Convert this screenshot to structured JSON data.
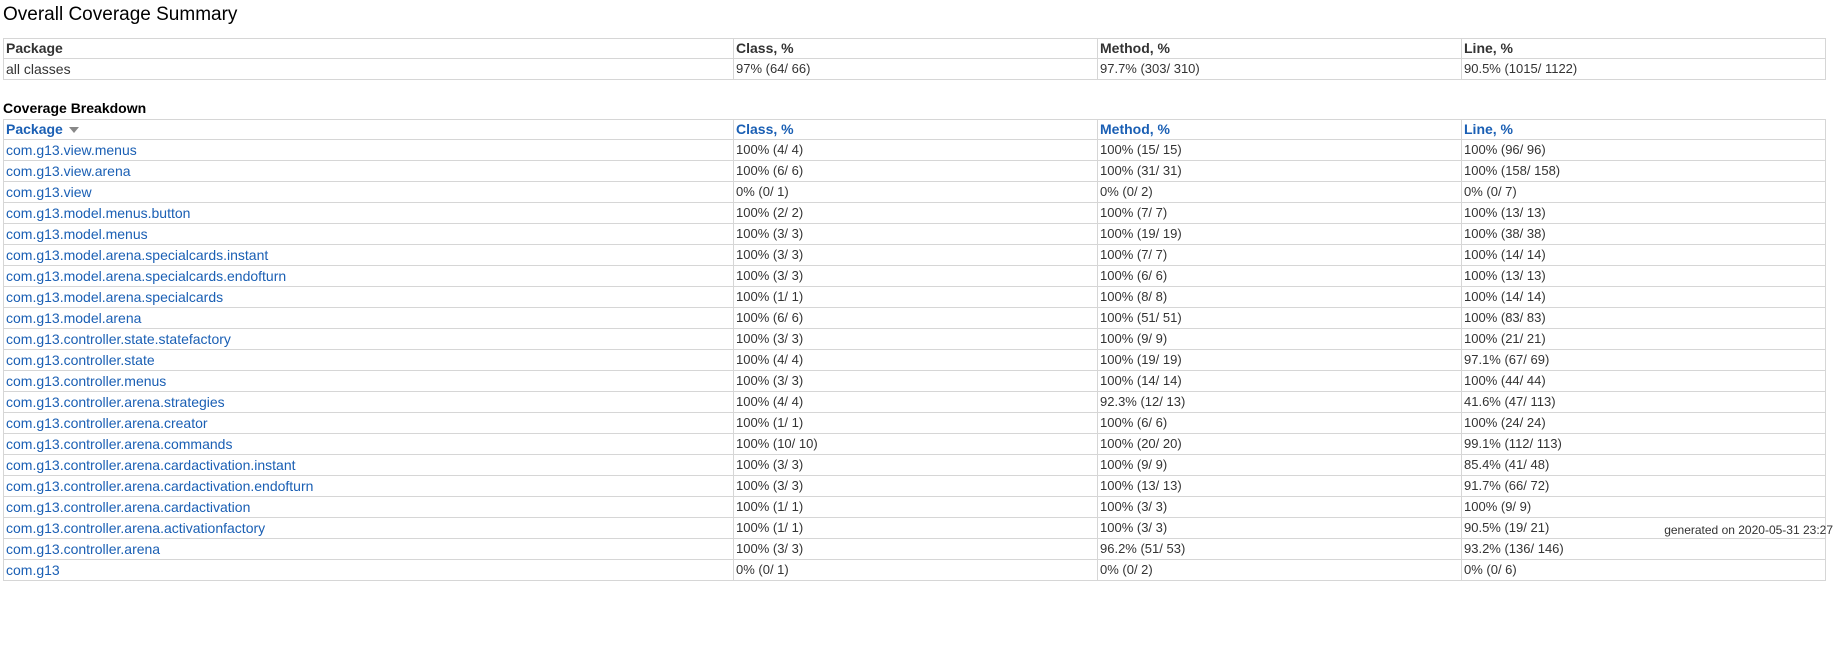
{
  "title": "Overall Coverage Summary",
  "summary": {
    "headers": [
      "Package",
      "Class, %",
      "Method, %",
      "Line, %"
    ],
    "row": {
      "package": "all classes",
      "class": "97% (64/ 66)",
      "method": "97.7% (303/ 310)",
      "line": "90.5% (1015/ 1122)"
    }
  },
  "breakdown": {
    "title": "Coverage Breakdown",
    "headers": [
      "Package",
      "Class, %",
      "Method, %",
      "Line, %"
    ],
    "sort_icon": "sort-descending-icon",
    "rows": [
      {
        "package": "com.g13.view.menus",
        "class": "100% (4/ 4)",
        "method": "100% (15/ 15)",
        "line": "100% (96/ 96)"
      },
      {
        "package": "com.g13.view.arena",
        "class": "100% (6/ 6)",
        "method": "100% (31/ 31)",
        "line": "100% (158/ 158)"
      },
      {
        "package": "com.g13.view",
        "class": "0% (0/ 1)",
        "method": "0% (0/ 2)",
        "line": "0% (0/ 7)"
      },
      {
        "package": "com.g13.model.menus.button",
        "class": "100% (2/ 2)",
        "method": "100% (7/ 7)",
        "line": "100% (13/ 13)"
      },
      {
        "package": "com.g13.model.menus",
        "class": "100% (3/ 3)",
        "method": "100% (19/ 19)",
        "line": "100% (38/ 38)"
      },
      {
        "package": "com.g13.model.arena.specialcards.instant",
        "class": "100% (3/ 3)",
        "method": "100% (7/ 7)",
        "line": "100% (14/ 14)"
      },
      {
        "package": "com.g13.model.arena.specialcards.endofturn",
        "class": "100% (3/ 3)",
        "method": "100% (6/ 6)",
        "line": "100% (13/ 13)"
      },
      {
        "package": "com.g13.model.arena.specialcards",
        "class": "100% (1/ 1)",
        "method": "100% (8/ 8)",
        "line": "100% (14/ 14)"
      },
      {
        "package": "com.g13.model.arena",
        "class": "100% (6/ 6)",
        "method": "100% (51/ 51)",
        "line": "100% (83/ 83)"
      },
      {
        "package": "com.g13.controller.state.statefactory",
        "class": "100% (3/ 3)",
        "method": "100% (9/ 9)",
        "line": "100% (21/ 21)"
      },
      {
        "package": "com.g13.controller.state",
        "class": "100% (4/ 4)",
        "method": "100% (19/ 19)",
        "line": "97.1% (67/ 69)"
      },
      {
        "package": "com.g13.controller.menus",
        "class": "100% (3/ 3)",
        "method": "100% (14/ 14)",
        "line": "100% (44/ 44)"
      },
      {
        "package": "com.g13.controller.arena.strategies",
        "class": "100% (4/ 4)",
        "method": "92.3% (12/ 13)",
        "line": "41.6% (47/ 113)"
      },
      {
        "package": "com.g13.controller.arena.creator",
        "class": "100% (1/ 1)",
        "method": "100% (6/ 6)",
        "line": "100% (24/ 24)"
      },
      {
        "package": "com.g13.controller.arena.commands",
        "class": "100% (10/ 10)",
        "method": "100% (20/ 20)",
        "line": "99.1% (112/ 113)"
      },
      {
        "package": "com.g13.controller.arena.cardactivation.instant",
        "class": "100% (3/ 3)",
        "method": "100% (9/ 9)",
        "line": "85.4% (41/ 48)"
      },
      {
        "package": "com.g13.controller.arena.cardactivation.endofturn",
        "class": "100% (3/ 3)",
        "method": "100% (13/ 13)",
        "line": "91.7% (66/ 72)"
      },
      {
        "package": "com.g13.controller.arena.cardactivation",
        "class": "100% (1/ 1)",
        "method": "100% (3/ 3)",
        "line": "100% (9/ 9)"
      },
      {
        "package": "com.g13.controller.arena.activationfactory",
        "class": "100% (1/ 1)",
        "method": "100% (3/ 3)",
        "line": "90.5% (19/ 21)"
      },
      {
        "package": "com.g13.controller.arena",
        "class": "100% (3/ 3)",
        "method": "96.2% (51/ 53)",
        "line": "93.2% (136/ 146)"
      },
      {
        "package": "com.g13",
        "class": "0% (0/ 1)",
        "method": "0% (0/ 2)",
        "line": "0% (0/ 6)"
      }
    ]
  },
  "footer": {
    "text": "generated on 2020-05-31 23:27"
  },
  "colors": {
    "link": "#1a5fb4",
    "border": "#d6d6d6"
  }
}
